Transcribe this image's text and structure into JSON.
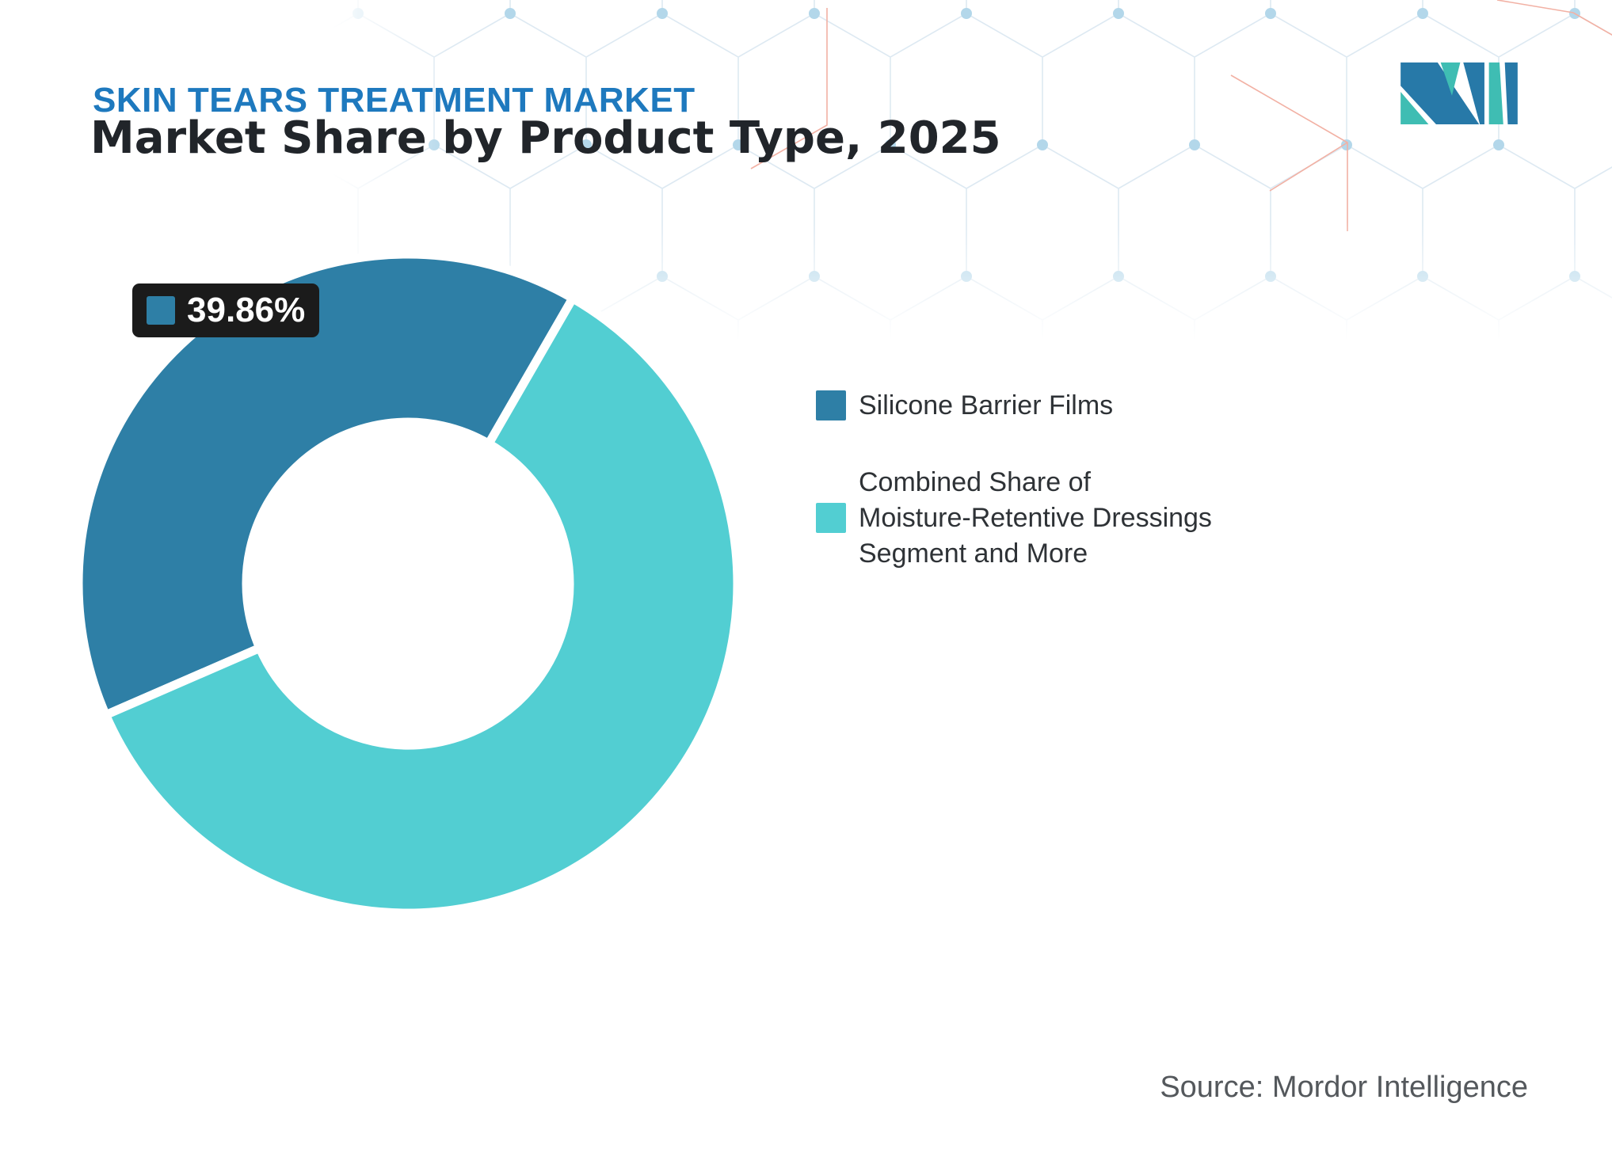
{
  "header": {
    "kicker": "SKIN TEARS TREATMENT MARKET",
    "title": "Market Share by Product Type, 2025"
  },
  "brand": {
    "logo_icon": "mordor-intelligence-logo",
    "logo_blue": "#2779a8",
    "logo_teal": "#3fbdb3"
  },
  "chart_data": {
    "type": "pie",
    "subtype": "donut",
    "title": "Market Share by Product Type, 2025",
    "series": [
      {
        "name": "Silicone Barrier Films",
        "value": 39.86,
        "color": "#2e7fa6"
      },
      {
        "name": "Combined Share of Moisture-Retentive Dressings Segment and More",
        "value": 60.14,
        "color": "#52ced2"
      }
    ],
    "start_angle_deg": 246.5,
    "inner_radius_ratio": 0.49,
    "data_label": {
      "text": "39.86%",
      "series": "Silicone Barrier Films",
      "swatch_color": "#2e7fa6",
      "bg": "#1b1b1b"
    },
    "legend_position": "right",
    "grid": false
  },
  "legend": {
    "items": [
      {
        "color": "#2e7fa6",
        "lines": [
          "Silicone Barrier Films"
        ]
      },
      {
        "color": "#52ced2",
        "lines": [
          "Combined Share of",
          "Moisture-Retentive Dressings",
          "Segment and More"
        ]
      }
    ]
  },
  "footer": {
    "source": "Source: Mordor Intelligence"
  },
  "decor": {
    "pattern_icon": "hexagon-network-pattern",
    "line_color": "#dde9f2",
    "dot_color": "#b3d7ea",
    "accent_line_color": "#f2b1a4"
  }
}
